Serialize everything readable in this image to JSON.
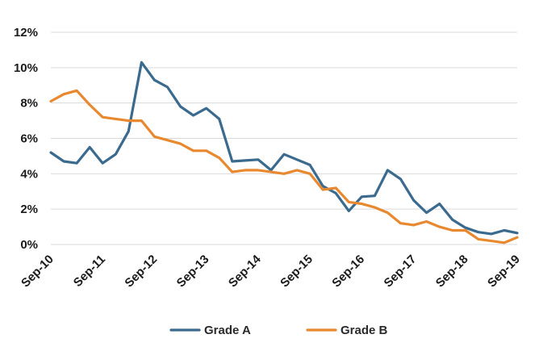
{
  "chart_data": {
    "type": "line",
    "title": "",
    "xlabel": "",
    "ylabel": "",
    "ylim": [
      0,
      12
    ],
    "y_ticks": [
      "0%",
      "2%",
      "4%",
      "6%",
      "8%",
      "10%",
      "12%"
    ],
    "x_tick_labels": [
      "Sep-10",
      "Sep-11",
      "Sep-12",
      "Sep-13",
      "Sep-14",
      "Sep-15",
      "Sep-16",
      "Sep-17",
      "Sep-18",
      "Sep-19"
    ],
    "x_step": "quarterly",
    "x": [
      "Sep-10",
      "Dec-10",
      "Mar-11",
      "Jun-11",
      "Sep-11",
      "Dec-11",
      "Mar-12",
      "Jun-12",
      "Sep-12",
      "Dec-12",
      "Mar-13",
      "Jun-13",
      "Sep-13",
      "Dec-13",
      "Mar-14",
      "Jun-14",
      "Sep-14",
      "Dec-14",
      "Mar-15",
      "Jun-15",
      "Sep-15",
      "Dec-15",
      "Mar-16",
      "Jun-16",
      "Sep-16",
      "Dec-16",
      "Mar-17",
      "Jun-17",
      "Sep-17",
      "Dec-17",
      "Mar-18",
      "Jun-18",
      "Sep-18",
      "Dec-18",
      "Mar-19",
      "Jun-19",
      "Sep-19"
    ],
    "grid": true,
    "legend_position": "bottom",
    "series": [
      {
        "name": "Grade A",
        "color": "#3b6a8f",
        "values": [
          5.2,
          4.7,
          4.6,
          5.5,
          4.6,
          5.1,
          6.4,
          10.3,
          9.3,
          8.9,
          7.8,
          7.3,
          7.7,
          7.1,
          4.7,
          4.75,
          4.8,
          4.2,
          5.1,
          4.8,
          4.5,
          3.3,
          2.9,
          1.9,
          2.7,
          2.75,
          4.2,
          3.7,
          2.5,
          1.8,
          2.3,
          1.4,
          0.95,
          0.7,
          0.6,
          0.8,
          0.65
        ]
      },
      {
        "name": "Grade B",
        "color": "#e8892f",
        "values": [
          8.1,
          8.5,
          8.7,
          7.9,
          7.2,
          7.1,
          7.0,
          7.0,
          6.1,
          5.9,
          5.7,
          5.3,
          5.3,
          4.9,
          4.1,
          4.2,
          4.2,
          4.1,
          4.0,
          4.2,
          4.0,
          3.1,
          3.2,
          2.4,
          2.3,
          2.1,
          1.8,
          1.2,
          1.1,
          1.3,
          1.0,
          0.8,
          0.8,
          0.3,
          0.2,
          0.1,
          0.4
        ]
      }
    ]
  }
}
